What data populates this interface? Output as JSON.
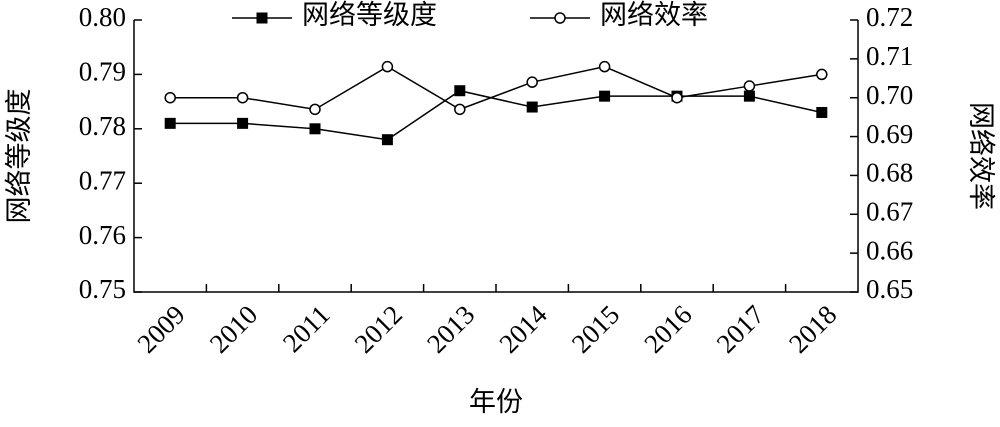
{
  "chart_data": {
    "type": "line",
    "x_label": "年份",
    "y_label": "网络等级度",
    "y2_label": "网络效率",
    "categories": [
      "2009",
      "2010",
      "2011",
      "2012",
      "2013",
      "2014",
      "2015",
      "2016",
      "2017",
      "2018"
    ],
    "series": [
      {
        "name": "网络等级度",
        "color": "#000000",
        "marker": "square",
        "values": [
          0.781,
          0.781,
          0.78,
          0.778,
          0.787,
          0.784,
          0.786,
          0.786,
          0.786,
          0.783
        ]
      },
      {
        "name": "网络效率",
        "color": "#000000",
        "marker": "circle",
        "axis": "y2",
        "values": [
          0.7,
          0.7,
          0.697,
          0.708,
          0.697,
          0.704,
          0.708,
          0.7,
          0.703,
          0.706
        ]
      }
    ],
    "ylim": [
      0.75,
      0.8
    ],
    "yticks": [
      0.75,
      0.76,
      0.77,
      0.78,
      0.79,
      {
        "value": 0.8,
        "label": "0.80"
      }
    ],
    "y2lim": [
      0.65,
      0.72
    ],
    "y2ticks": [
      0.65,
      0.66,
      0.67,
      0.68,
      0.69,
      {
        "value": 0.7,
        "label": "0.70"
      },
      0.71,
      0.72
    ],
    "legend": "top"
  }
}
